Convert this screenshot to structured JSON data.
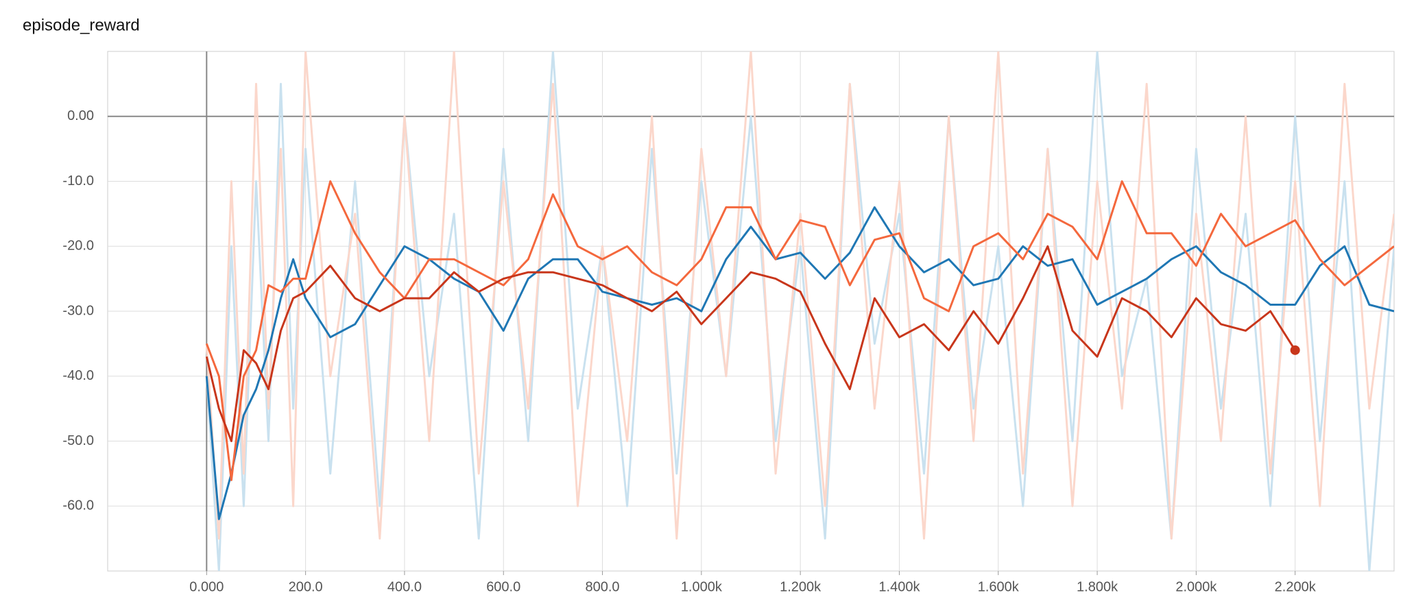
{
  "chart_data": {
    "type": "line",
    "title": "episode_reward",
    "x": [
      0,
      25,
      50,
      75,
      100,
      125,
      150,
      175,
      200,
      250,
      300,
      350,
      400,
      450,
      500,
      550,
      600,
      650,
      700,
      750,
      800,
      850,
      900,
      950,
      1000,
      1050,
      1100,
      1150,
      1200,
      1250,
      1300,
      1350,
      1400,
      1450,
      1500,
      1550,
      1600,
      1650,
      1700,
      1750,
      1800,
      1850,
      1900,
      1950,
      2000,
      2050,
      2100,
      2150,
      2200,
      2250,
      2300,
      2350,
      2400
    ],
    "series": [
      {
        "color": "#c9e1ef",
        "values": [
          -40,
          -70,
          -20,
          -60,
          -10,
          -50,
          5,
          -45,
          -5,
          -55,
          -10,
          -60,
          0,
          -40,
          -15,
          -65,
          -5,
          -50,
          10,
          -45,
          -20,
          -60,
          -5,
          -55,
          -10,
          -40,
          0,
          -50,
          -20,
          -65,
          5,
          -35,
          -15,
          -55,
          0,
          -45,
          -20,
          -60,
          -5,
          -50,
          10,
          -40,
          -25,
          -65,
          -5,
          -45,
          -15,
          -60,
          0,
          -50,
          -10,
          -70,
          -20
        ]
      },
      {
        "color": "#fbd7cb",
        "values": [
          -35,
          -65,
          -10,
          -55,
          5,
          -45,
          -5,
          -60,
          10,
          -40,
          -15,
          -65,
          0,
          -50,
          10,
          -55,
          -10,
          -45,
          5,
          -60,
          -20,
          -50,
          0,
          -65,
          -5,
          -40,
          10,
          -55,
          -15,
          -60,
          5,
          -45,
          -10,
          -65,
          0,
          -50,
          10,
          -55,
          -5,
          -60,
          -10,
          -45,
          5,
          -65,
          -15,
          -50,
          0,
          -55,
          -10,
          -60,
          5,
          -45,
          -15
        ]
      },
      {
        "color": "#1f77b4",
        "values": [
          -40,
          -62,
          -55,
          -46,
          -42,
          -36,
          -28,
          -22,
          -28,
          -34,
          -32,
          -26,
          -20,
          -22,
          -25,
          -27,
          -33,
          -25,
          -22,
          -22,
          -27,
          -28,
          -29,
          -28,
          -30,
          -22,
          -17,
          -22,
          -21,
          -25,
          -21,
          -14,
          -20,
          -24,
          -22,
          -26,
          -25,
          -20,
          -23,
          -22,
          -29,
          -27,
          -25,
          -22,
          -20,
          -24,
          -26,
          -29,
          -29,
          -23,
          -20,
          -29,
          -30
        ]
      },
      {
        "color": "#f4683d",
        "values": [
          -35,
          -40,
          -56,
          -40,
          -36,
          -26,
          -27,
          -25,
          -25,
          -10,
          -18,
          -24,
          -28,
          -22,
          -22,
          -24,
          -26,
          -22,
          -12,
          -20,
          -22,
          -20,
          -24,
          -26,
          -22,
          -14,
          -14,
          -22,
          -16,
          -17,
          -26,
          -19,
          -18,
          -28,
          -30,
          -20,
          -18,
          -22,
          -15,
          -17,
          -22,
          -10,
          -18,
          -18,
          -23,
          -15,
          -20,
          -18,
          -16,
          -22,
          -26,
          -23,
          -20
        ]
      },
      {
        "color": "#c8361b",
        "values": [
          -37,
          -45,
          -50,
          -36,
          -38,
          -42,
          -33,
          -28,
          -27,
          -23,
          -28,
          -30,
          -28,
          -28,
          -24,
          -27,
          -25,
          -24,
          -24,
          -25,
          -26,
          -28,
          -30,
          -27,
          -32,
          -28,
          -24,
          -25,
          -27,
          -35,
          -42,
          -28,
          -34,
          -32,
          -36,
          -30,
          -35,
          -28,
          -20,
          -33,
          -37,
          -28,
          -30,
          -34,
          -28,
          -32,
          -33,
          -30,
          -36,
          null,
          null,
          null,
          null
        ],
        "end_marker": true
      }
    ],
    "xlim": [
      -200,
      2400
    ],
    "ylim": [
      -70,
      10
    ],
    "xticks": [
      {
        "value": 0,
        "label": "0.000"
      },
      {
        "value": 200,
        "label": "200.0"
      },
      {
        "value": 400,
        "label": "400.0"
      },
      {
        "value": 600,
        "label": "600.0"
      },
      {
        "value": 800,
        "label": "800.0"
      },
      {
        "value": 1000,
        "label": "1.000k"
      },
      {
        "value": 1200,
        "label": "1.200k"
      },
      {
        "value": 1400,
        "label": "1.400k"
      },
      {
        "value": 1600,
        "label": "1.600k"
      },
      {
        "value": 1800,
        "label": "1.800k"
      },
      {
        "value": 2000,
        "label": "2.000k"
      },
      {
        "value": 2200,
        "label": "2.200k"
      }
    ],
    "yticks": [
      {
        "value": 0,
        "label": "0.00"
      },
      {
        "value": -10,
        "label": "-10.0"
      },
      {
        "value": -20,
        "label": "-20.0"
      },
      {
        "value": -30,
        "label": "-30.0"
      },
      {
        "value": -40,
        "label": "-40.0"
      },
      {
        "value": -50,
        "label": "-50.0"
      },
      {
        "value": -60,
        "label": "-60.0"
      }
    ],
    "grid": true
  }
}
